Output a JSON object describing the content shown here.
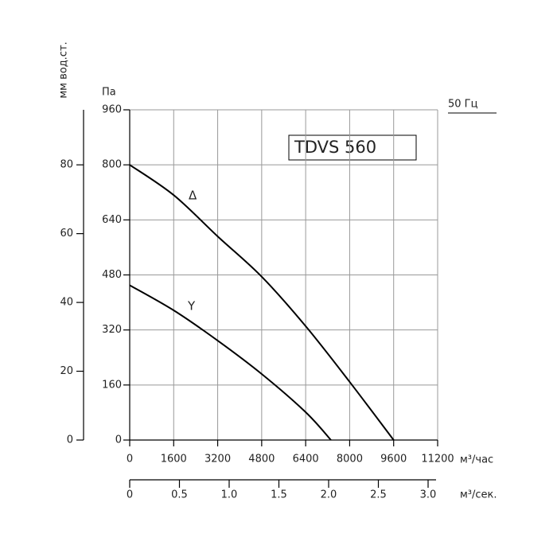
{
  "chart_data": {
    "type": "line",
    "title": "TDVS 560",
    "frequency_label": "50 Гц",
    "y_label": "Па",
    "x_label": "м³/час",
    "xlim": [
      0,
      11200
    ],
    "xticks": [
      0,
      1600,
      3200,
      4800,
      6400,
      8000,
      9600,
      11200
    ],
    "ylim": [
      0,
      960
    ],
    "yticks": [
      0,
      160,
      320,
      480,
      640,
      800,
      960
    ],
    "y2_label": "мм вод.ст.",
    "y2lim": [
      0,
      96
    ],
    "y2ticks": [
      0,
      20,
      40,
      60,
      80
    ],
    "x2_label": "м³/сек.",
    "x2lim": [
      0,
      3.08
    ],
    "x2ticks": [
      0,
      0.5,
      {
        "value": 1,
        "label": "1.0"
      },
      1.5,
      {
        "value": 2,
        "label": "2.0"
      },
      2.5,
      {
        "value": 3,
        "label": "3.0"
      }
    ],
    "grid": true,
    "series": [
      {
        "name": "Δ",
        "color": "#000000",
        "x": [
          0,
          1600,
          3200,
          4800,
          6400,
          8000,
          9600
        ],
        "values": [
          800,
          712,
          592,
          475,
          331,
          169,
          0
        ]
      },
      {
        "name": "Y",
        "color": "#000000",
        "x": [
          0,
          1600,
          3200,
          4800,
          6400,
          7320
        ],
        "values": [
          450,
          377,
          289,
          192,
          81,
          0
        ]
      }
    ]
  }
}
